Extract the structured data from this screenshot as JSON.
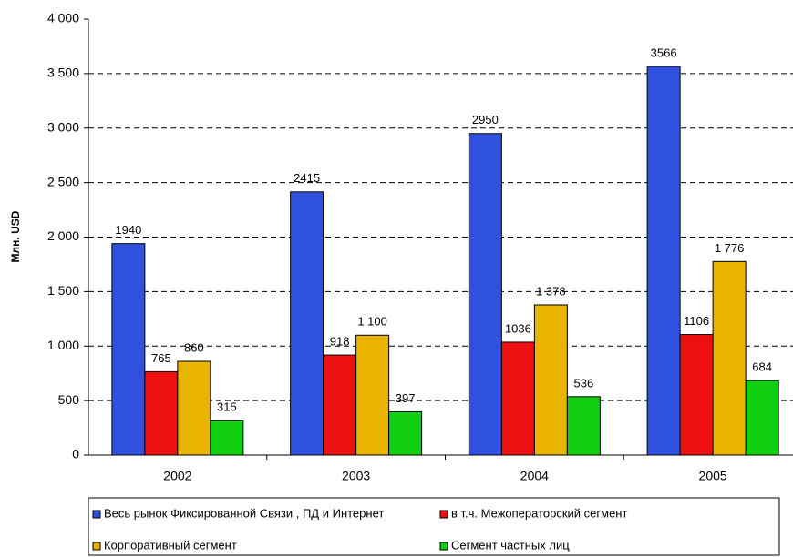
{
  "chart_data": {
    "type": "bar",
    "y_label": "Млн. USD",
    "categories": [
      "2002",
      "2003",
      "2004",
      "2005"
    ],
    "series": [
      {
        "name": "Весь рынок Фиксированной Связи , ПД и Интернет",
        "color": "#3050e0",
        "values": [
          1940,
          2415,
          2950,
          3566
        ]
      },
      {
        "name": "в т.ч. Межоператорский сегмент",
        "color": "#ee1010",
        "values": [
          765,
          918,
          1036,
          1106
        ]
      },
      {
        "name": "Корпоративный сегмент",
        "color": "#e8b400",
        "values": [
          860,
          1100,
          1378,
          1776
        ],
        "value_labels": [
          "860",
          "1 100",
          "1 378",
          "1 776"
        ]
      },
      {
        "name": "Сегмент частных лиц",
        "color": "#10d010",
        "values": [
          315,
          397,
          536,
          684
        ]
      }
    ],
    "ylim": [
      0,
      4000
    ],
    "yticks": [
      0,
      500,
      {
        "value": 1000,
        "label": "1 000"
      },
      {
        "value": 1500,
        "label": "1 500"
      },
      {
        "value": 2000,
        "label": "2 000"
      },
      {
        "value": 2500,
        "label": "2 500"
      },
      {
        "value": 3000,
        "label": "3 000"
      },
      {
        "value": 3500,
        "label": "3 500"
      },
      {
        "value": 4000,
        "label": "4 000"
      }
    ],
    "grid": true
  }
}
